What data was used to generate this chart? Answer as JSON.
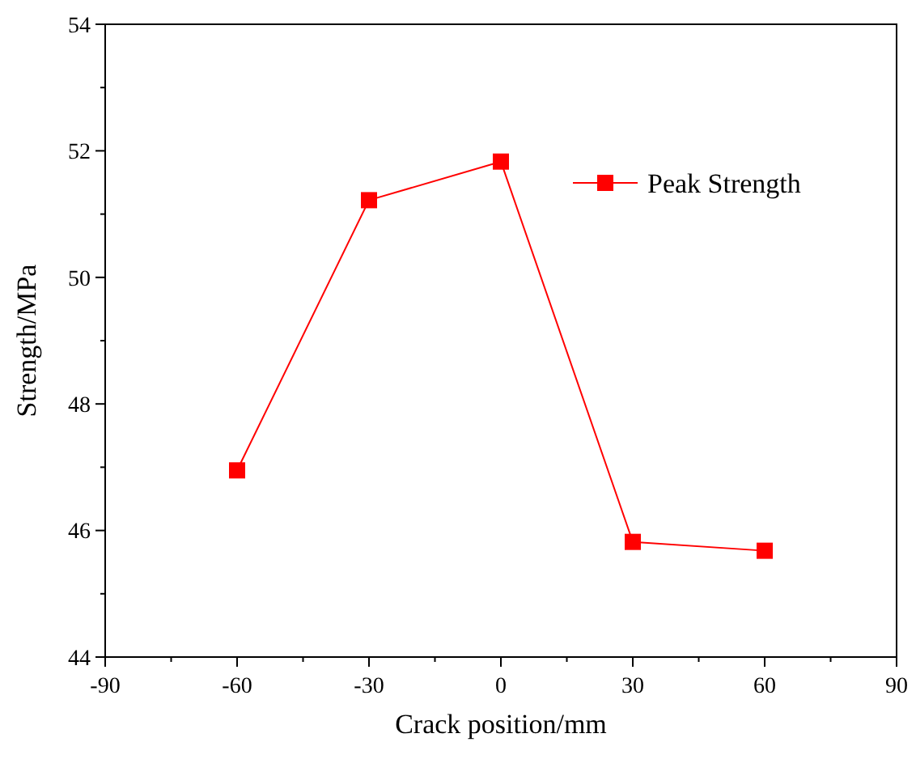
{
  "chart_data": {
    "type": "line",
    "xlabel": "Crack position/mm",
    "ylabel": "Strength/MPa",
    "x": [
      -60,
      -30,
      0,
      30,
      60
    ],
    "series": [
      {
        "name": "Peak Strength",
        "color": "#ff0000",
        "values": [
          46.95,
          51.22,
          51.83,
          45.82,
          45.68
        ]
      }
    ],
    "xlim": [
      -90,
      90
    ],
    "xticks": [
      -90,
      {
        "value": -75,
        "label": null
      },
      -60,
      {
        "value": -45,
        "label": null
      },
      -30,
      {
        "value": -15,
        "label": null
      },
      0,
      {
        "value": 15,
        "label": null
      },
      30,
      {
        "value": 45,
        "label": null
      },
      60,
      {
        "value": 75,
        "label": null
      },
      90
    ],
    "ylim": [
      44,
      54
    ],
    "yticks": [
      44,
      {
        "value": 45,
        "label": null
      },
      46,
      {
        "value": 47,
        "label": null
      },
      48,
      {
        "value": 49,
        "label": null
      },
      50,
      {
        "value": 51,
        "label": null
      },
      52,
      {
        "value": 53,
        "label": null
      },
      54
    ],
    "marker": "square",
    "legend": "top right",
    "grid": false
  }
}
